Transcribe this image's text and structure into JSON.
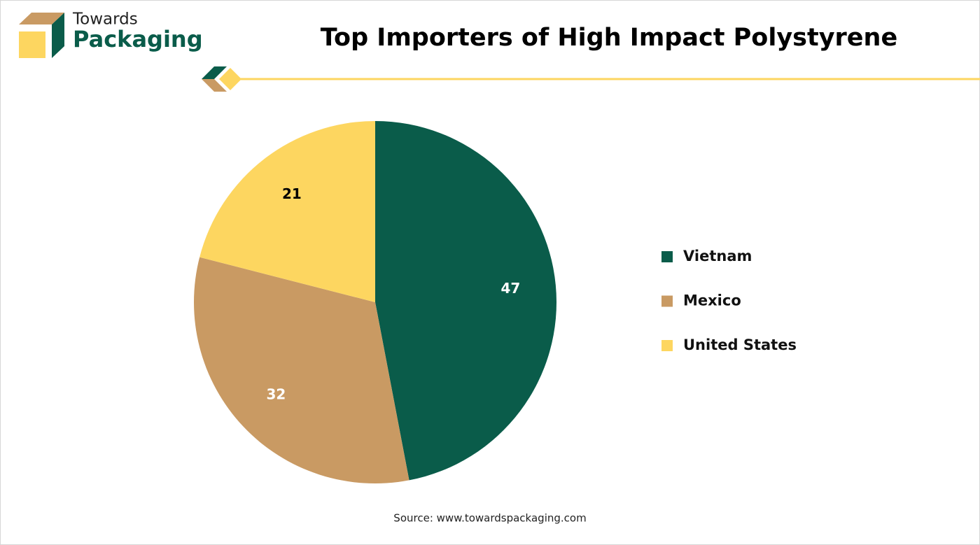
{
  "logo": {
    "line1": "Towards",
    "line2": "Packaging"
  },
  "chart_data": {
    "type": "pie",
    "title": "Top Importers of High Impact Polystyrene",
    "categories": [
      "Vietnam",
      "Mexico",
      "United States"
    ],
    "values": [
      47,
      32,
      21
    ],
    "colors": [
      "#0a5c4a",
      "#c99a63",
      "#fdd660"
    ],
    "label_colors": [
      "#ffffff",
      "#ffffff",
      "#000000"
    ],
    "source": "Source: www.towardspackaging.com"
  }
}
